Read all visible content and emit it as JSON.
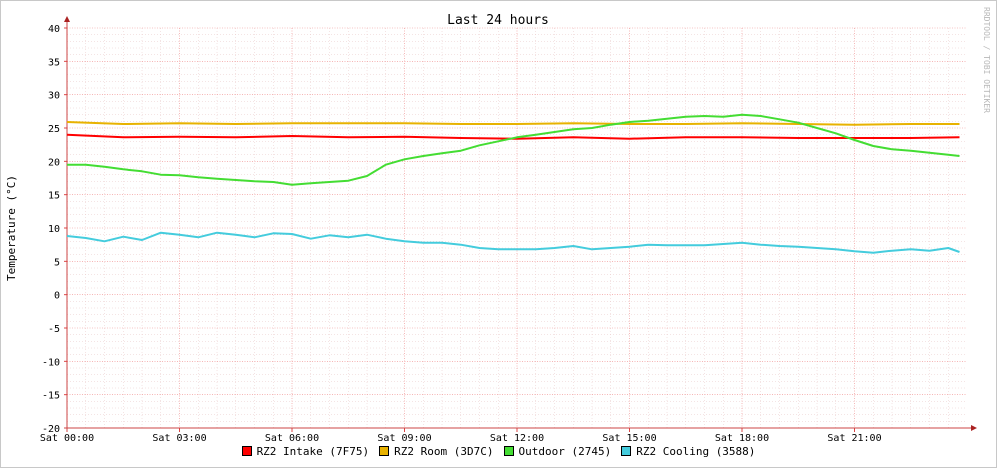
{
  "chart_data": {
    "type": "line",
    "title": "Last 24 hours",
    "ylabel": "Temperature (°C)",
    "watermark": "RRDTOOL / TOBI OETIKER",
    "ylim": [
      -20,
      40
    ],
    "y_ticks": [
      40,
      35,
      30,
      25,
      20,
      15,
      10,
      5,
      0,
      -5,
      -10,
      -15,
      -20
    ],
    "y_tick_labels": [
      "40",
      "35",
      "30",
      "25",
      "20",
      "15",
      "10",
      "5",
      "0",
      "-5",
      "-10",
      "-15",
      "-20"
    ],
    "xlim_hours": [
      0,
      24
    ],
    "x_ticks": [
      0,
      3,
      6,
      9,
      12,
      15,
      18,
      21
    ],
    "x_tick_labels": [
      "Sat 00:00",
      "Sat 03:00",
      "Sat 06:00",
      "Sat 09:00",
      "Sat 12:00",
      "Sat 15:00",
      "Sat 18:00",
      "Sat 21:00"
    ],
    "grid": true,
    "legend_position": "bottom",
    "series": [
      {
        "name": "RZ2 Intake (7F75)",
        "color": "#ff0000",
        "x": [
          0,
          1.5,
          3,
          4.5,
          6,
          7.5,
          9,
          10.5,
          12,
          13.5,
          15,
          16.5,
          18,
          19.5,
          21,
          22.5,
          23.8
        ],
        "values": [
          24,
          23.6,
          23.7,
          23.6,
          23.8,
          23.6,
          23.7,
          23.5,
          23.4,
          23.6,
          23.4,
          23.6,
          23.6,
          23.5,
          23.5,
          23.5,
          23.6
        ]
      },
      {
        "name": "RZ2 Room (3D7C)",
        "color": "#e8b200",
        "x": [
          0,
          1.5,
          3,
          4.5,
          6,
          7.5,
          9,
          10.5,
          12,
          13.5,
          15,
          16.5,
          18,
          19.5,
          21,
          22.5,
          23.8
        ],
        "values": [
          25.9,
          25.6,
          25.7,
          25.6,
          25.7,
          25.7,
          25.7,
          25.6,
          25.6,
          25.7,
          25.6,
          25.6,
          25.7,
          25.6,
          25.5,
          25.6,
          25.6
        ]
      },
      {
        "name": "Outdoor (2745)",
        "color": "#44dd33",
        "x": [
          0,
          0.5,
          1,
          1.5,
          2,
          2.5,
          3,
          3.5,
          4,
          4.5,
          5,
          5.5,
          6,
          6.5,
          7,
          7.5,
          8,
          8.5,
          9,
          9.5,
          10,
          10.5,
          11,
          11.5,
          12,
          12.5,
          13,
          13.5,
          14,
          14.5,
          15,
          15.5,
          16,
          16.5,
          17,
          17.5,
          18,
          18.5,
          19,
          19.5,
          20,
          20.5,
          21,
          21.5,
          22,
          22.5,
          23,
          23.5,
          23.8
        ],
        "values": [
          19.5,
          19.5,
          19.2,
          18.8,
          18.5,
          18.0,
          17.9,
          17.6,
          17.4,
          17.2,
          17.0,
          16.9,
          16.5,
          16.7,
          16.9,
          17.1,
          17.8,
          19.5,
          20.3,
          20.8,
          21.2,
          21.6,
          22.4,
          23.0,
          23.6,
          24.0,
          24.4,
          24.8,
          25.0,
          25.5,
          25.9,
          26.1,
          26.4,
          26.7,
          26.8,
          26.7,
          27.0,
          26.8,
          26.3,
          25.8,
          25.0,
          24.2,
          23.2,
          22.3,
          21.8,
          21.6,
          21.3,
          21.0,
          20.8
        ]
      },
      {
        "name": "RZ2 Cooling (3588)",
        "color": "#44ccdd",
        "x": [
          0,
          0.5,
          1,
          1.5,
          2,
          2.5,
          3,
          3.5,
          4,
          4.5,
          5,
          5.5,
          6,
          6.5,
          7,
          7.5,
          8,
          8.5,
          9,
          9.5,
          10,
          10.5,
          11,
          11.5,
          12,
          12.5,
          13,
          13.5,
          14,
          14.5,
          15,
          15.5,
          16,
          16.5,
          17,
          17.5,
          18,
          18.5,
          19,
          19.5,
          20,
          20.5,
          21,
          21.5,
          22,
          22.5,
          23,
          23.5,
          23.8
        ],
        "values": [
          8.8,
          8.5,
          8.0,
          8.7,
          8.2,
          9.3,
          9.0,
          8.6,
          9.3,
          9.0,
          8.6,
          9.2,
          9.1,
          8.4,
          8.9,
          8.6,
          9.0,
          8.4,
          8.0,
          7.8,
          7.8,
          7.5,
          7.0,
          6.8,
          6.8,
          6.8,
          7.0,
          7.3,
          6.8,
          7.0,
          7.2,
          7.5,
          7.4,
          7.4,
          7.4,
          7.6,
          7.8,
          7.5,
          7.3,
          7.2,
          7.0,
          6.8,
          6.5,
          6.3,
          6.6,
          6.8,
          6.6,
          7.0,
          6.4
        ]
      }
    ]
  }
}
